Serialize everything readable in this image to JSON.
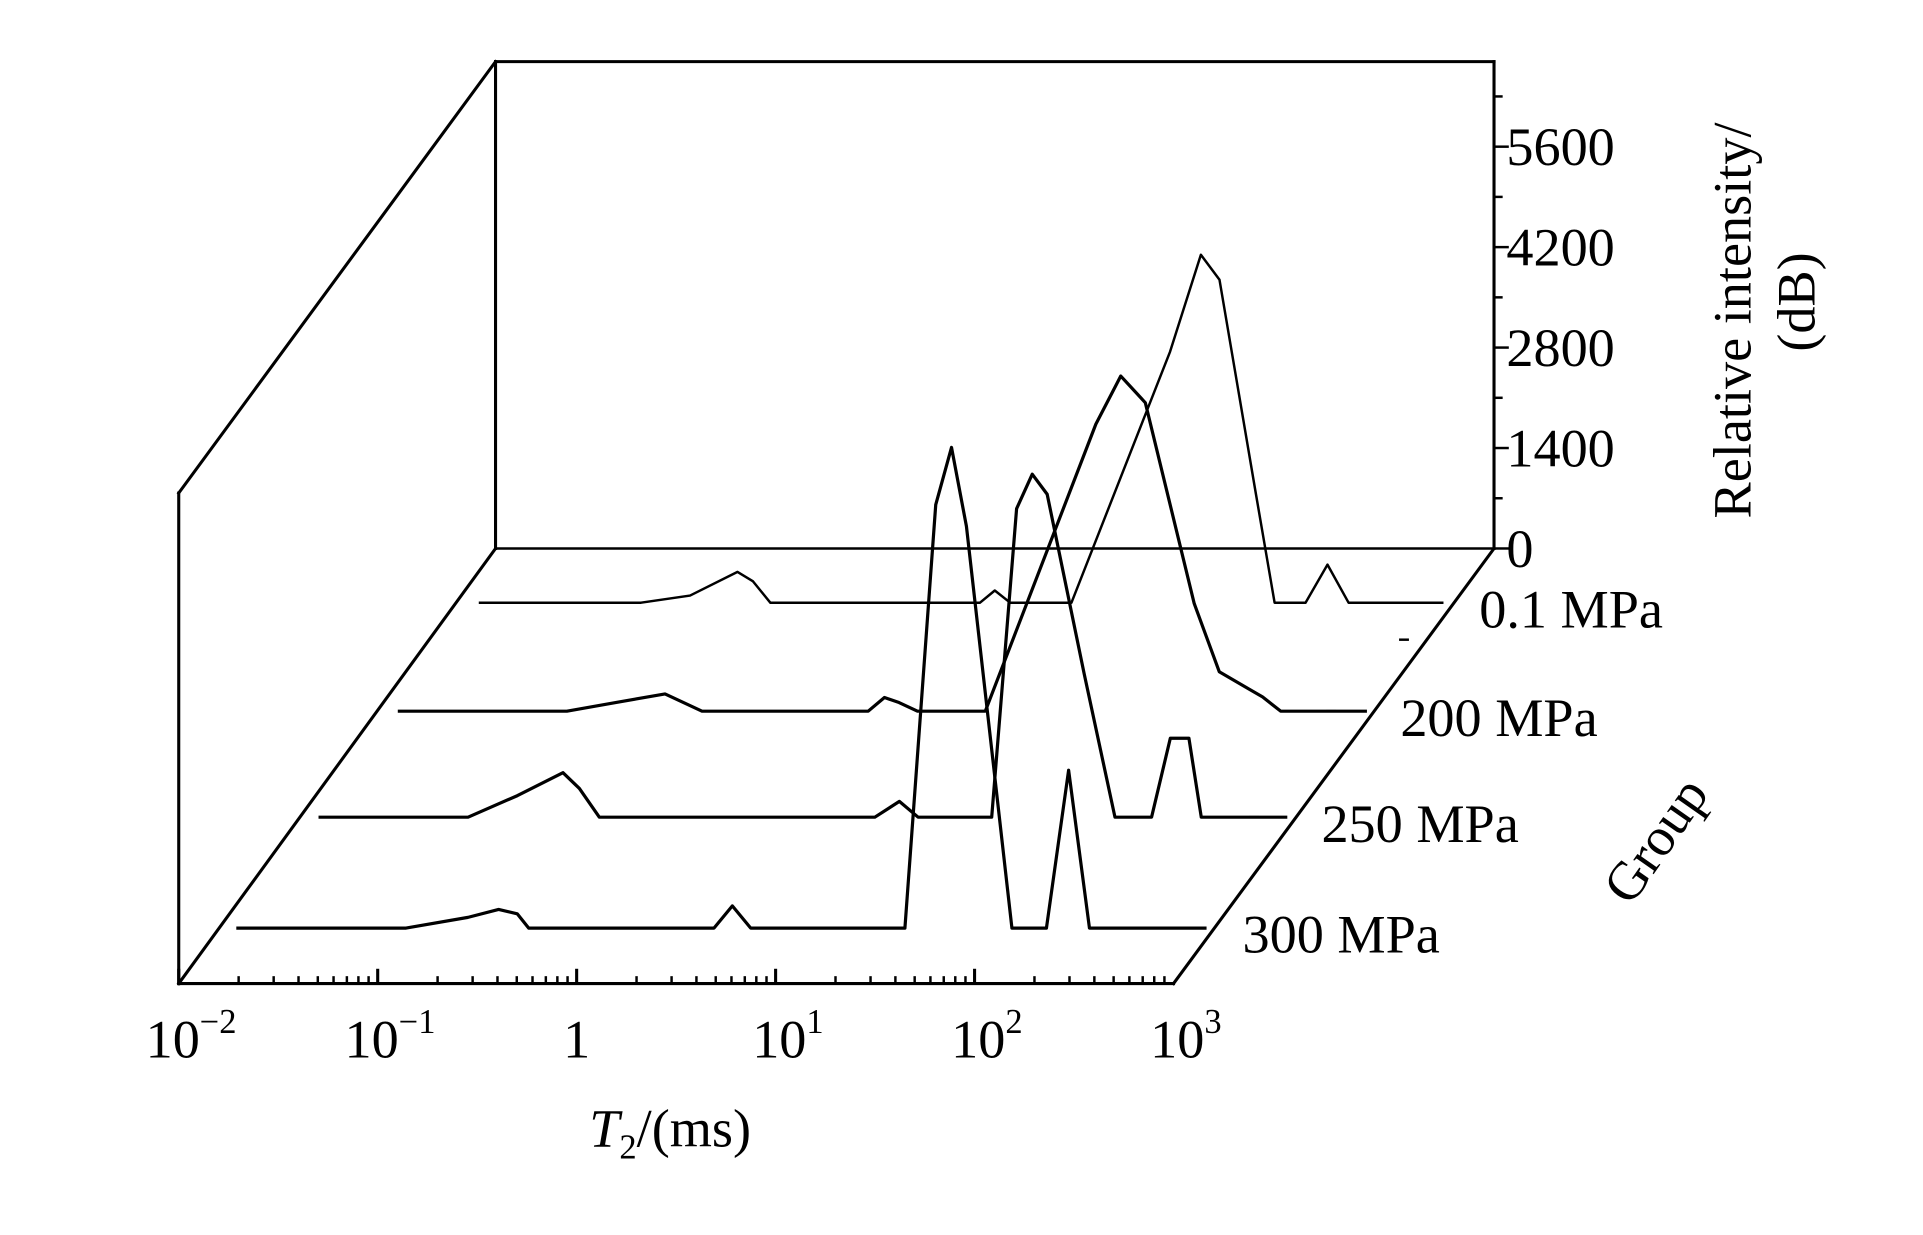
{
  "chart_data": {
    "type": "line",
    "subtype": "3d-waterfall",
    "x_axis": {
      "label_main": "T",
      "label_sub": "2",
      "label_rest": "/(ms)",
      "scale": "log",
      "range": [
        0.01,
        1000
      ],
      "ticks": [
        {
          "value": 0.01,
          "base": "10",
          "exp": "−2"
        },
        {
          "value": 0.1,
          "base": "10",
          "exp": "−1"
        },
        {
          "value": 1,
          "base": "1",
          "exp": ""
        },
        {
          "value": 10,
          "base": "10",
          "exp": "1"
        },
        {
          "value": 100,
          "base": "10",
          "exp": "2"
        },
        {
          "value": 1000,
          "base": "10",
          "exp": "3"
        }
      ]
    },
    "z_axis": {
      "label_line1": "Relative intensity/",
      "label_line2": "(dB)",
      "range": [
        0,
        7000
      ],
      "ticks": [
        "0",
        "1400",
        "2800",
        "4200",
        "5600"
      ]
    },
    "depth_axis": {
      "label": "Group",
      "categories": [
        "0.1 MPa",
        "200 MPa",
        "250 MPa",
        "300 MPa"
      ]
    },
    "grid": false,
    "series": [
      {
        "name": "0.1 MPa",
        "points": [
          [
            0.013,
            0
          ],
          [
            0.085,
            0
          ],
          [
            0.15,
            100
          ],
          [
            0.26,
            430
          ],
          [
            0.31,
            300
          ],
          [
            0.38,
            0
          ],
          [
            4.3,
            0
          ],
          [
            5.1,
            170
          ],
          [
            6.1,
            0
          ],
          [
            12.4,
            0
          ],
          [
            38.8,
            3500
          ],
          [
            55.4,
            4850
          ],
          [
            68.7,
            4500
          ],
          [
            105,
            1500
          ],
          [
            130,
            0
          ],
          [
            186,
            0
          ],
          [
            240,
            530
          ],
          [
            306,
            0
          ],
          [
            918,
            0
          ]
        ]
      },
      {
        "name": "200 MPa",
        "points": [
          [
            0.0127,
            0
          ],
          [
            0.09,
            0
          ],
          [
            0.158,
            120
          ],
          [
            0.28,
            240
          ],
          [
            0.43,
            0
          ],
          [
            2.94,
            0
          ],
          [
            3.55,
            190
          ],
          [
            4.2,
            120
          ],
          [
            5.2,
            0
          ],
          [
            11.4,
            0
          ],
          [
            41,
            4000
          ],
          [
            54.7,
            4670
          ],
          [
            72.6,
            4300
          ],
          [
            128,
            1500
          ],
          [
            171,
            550
          ],
          [
            244,
            300
          ],
          [
            282,
            200
          ],
          [
            348,
            0
          ],
          [
            944,
            0
          ]
        ]
      },
      {
        "name": "250 MPa",
        "points": [
          [
            0.0124,
            0
          ],
          [
            0.07,
            0
          ],
          [
            0.124,
            300
          ],
          [
            0.21,
            620
          ],
          [
            0.254,
            400
          ],
          [
            0.32,
            0
          ],
          [
            7.76,
            0
          ],
          [
            10.3,
            220
          ],
          [
            12.8,
            0
          ],
          [
            30,
            0
          ],
          [
            40,
            4300
          ],
          [
            48,
            4780
          ],
          [
            57,
            4500
          ],
          [
            87.5,
            2000
          ],
          [
            125,
            0
          ],
          [
            191,
            0
          ],
          [
            237,
            1100
          ],
          [
            294,
            1100
          ],
          [
            339,
            0
          ],
          [
            918,
            0
          ]
        ]
      },
      {
        "name": "300 MPa",
        "points": [
          [
            0.0122,
            0
          ],
          [
            0.087,
            0
          ],
          [
            0.178,
            150
          ],
          [
            0.254,
            260
          ],
          [
            0.315,
            200
          ],
          [
            0.36,
            0
          ],
          [
            3.07,
            0
          ],
          [
            3.8,
            310
          ],
          [
            4.7,
            0
          ],
          [
            28,
            0
          ],
          [
            40,
            5900
          ],
          [
            48,
            6700
          ],
          [
            57,
            5600
          ],
          [
            96.6,
            0
          ],
          [
            144,
            0
          ],
          [
            186,
            2200
          ],
          [
            237,
            0
          ],
          [
            918,
            0
          ]
        ]
      }
    ]
  }
}
